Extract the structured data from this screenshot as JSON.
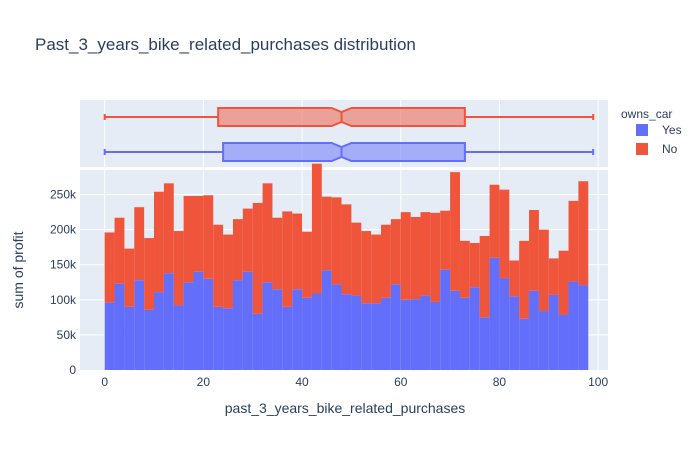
{
  "chart_data": {
    "type": "histogram",
    "barmode": "stack",
    "title": "Past_3_years_bike_related_purchases distribution",
    "xlabel": "past_3_years_bike_related_purchases",
    "ylabel": "sum of profit",
    "xlim": [
      -5,
      102
    ],
    "ylim": [
      0,
      285000
    ],
    "x_ticks": [
      0,
      20,
      40,
      60,
      80,
      100
    ],
    "y_ticks": [
      0,
      50000,
      100000,
      150000,
      200000,
      250000
    ],
    "y_tick_labels": [
      "0",
      "50k",
      "100k",
      "150k",
      "200k",
      "250k"
    ],
    "bin_start": 0,
    "bin_width": 2,
    "legend": {
      "title": "owns_car",
      "position": "right"
    },
    "series": [
      {
        "name": "Yes",
        "color": "#636efa",
        "values": [
          96000,
          123000,
          90000,
          128000,
          86000,
          111000,
          138000,
          92000,
          125000,
          140000,
          130000,
          90000,
          88000,
          128000,
          140000,
          80000,
          125000,
          115000,
          90000,
          115000,
          103000,
          109000,
          142000,
          122000,
          108000,
          106000,
          95000,
          95000,
          103000,
          122000,
          100000,
          101000,
          106000,
          97000,
          143000,
          113000,
          103000,
          118000,
          75000,
          160000,
          131000,
          105000,
          73000,
          113000,
          84000,
          107000,
          79000,
          126000,
          121000
        ]
      },
      {
        "name": "No",
        "color": "#ef553b",
        "values": [
          100000,
          94000,
          83000,
          104000,
          102000,
          143000,
          128000,
          106000,
          123000,
          108000,
          119000,
          117000,
          105000,
          87000,
          90000,
          158000,
          141000,
          102000,
          136000,
          108000,
          94000,
          185000,
          105000,
          124000,
          128000,
          104000,
          103000,
          98000,
          104000,
          93000,
          125000,
          117000,
          119000,
          127000,
          84000,
          169000,
          81000,
          63000,
          116000,
          104000,
          126000,
          51000,
          111000,
          115000,
          116000,
          52000,
          91000,
          115000,
          148000
        ]
      }
    ],
    "box_plots": [
      {
        "name": "No",
        "color": "#ef553b",
        "fill": "rgba(239,85,59,0.5)",
        "min": 0,
        "q1": 23,
        "median": 48,
        "q3": 73,
        "max": 99,
        "notch_low": 46,
        "notch_high": 50
      },
      {
        "name": "Yes",
        "color": "#636efa",
        "fill": "rgba(99,110,250,0.5)",
        "min": 0,
        "q1": 24,
        "median": 48,
        "q3": 73,
        "max": 99,
        "notch_low": 46,
        "notch_high": 50
      }
    ]
  }
}
